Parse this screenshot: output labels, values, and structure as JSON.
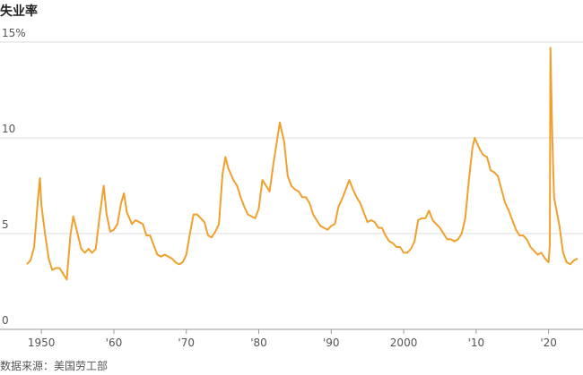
{
  "chart_data": {
    "type": "line",
    "title": "失业率",
    "source": "数据来源：美国劳工部",
    "x": [
      1948.0,
      1948.5,
      1949.0,
      1949.5,
      1949.8,
      1950.0,
      1950.5,
      1951.0,
      1951.5,
      1952.0,
      1952.5,
      1953.0,
      1953.5,
      1954.0,
      1954.4,
      1954.8,
      1955.5,
      1956.0,
      1956.5,
      1957.0,
      1957.5,
      1958.0,
      1958.6,
      1959.0,
      1959.5,
      1960.0,
      1960.5,
      1961.0,
      1961.4,
      1961.8,
      1962.5,
      1963.0,
      1963.5,
      1964.0,
      1964.5,
      1965.0,
      1965.5,
      1966.0,
      1966.5,
      1967.0,
      1967.5,
      1968.0,
      1968.5,
      1969.0,
      1969.5,
      1970.0,
      1970.5,
      1971.0,
      1971.5,
      1972.0,
      1972.5,
      1973.0,
      1973.5,
      1974.0,
      1974.5,
      1975.0,
      1975.4,
      1975.8,
      1976.5,
      1977.0,
      1977.5,
      1978.0,
      1978.5,
      1979.0,
      1979.5,
      1980.0,
      1980.5,
      1981.0,
      1981.5,
      1982.0,
      1982.5,
      1982.9,
      1983.5,
      1984.0,
      1984.5,
      1985.0,
      1985.5,
      1986.0,
      1986.5,
      1987.0,
      1987.5,
      1988.0,
      1988.5,
      1989.0,
      1989.5,
      1990.0,
      1990.5,
      1991.0,
      1991.5,
      1992.0,
      1992.5,
      1993.0,
      1993.5,
      1994.0,
      1994.5,
      1995.0,
      1995.5,
      1996.0,
      1996.5,
      1997.0,
      1997.5,
      1998.0,
      1998.5,
      1999.0,
      1999.5,
      2000.0,
      2000.5,
      2001.0,
      2001.5,
      2002.0,
      2002.5,
      2003.0,
      2003.5,
      2004.0,
      2004.5,
      2005.0,
      2005.5,
      2006.0,
      2006.5,
      2007.0,
      2007.5,
      2008.0,
      2008.5,
      2009.0,
      2009.5,
      2009.8,
      2010.5,
      2011.0,
      2011.5,
      2012.0,
      2012.5,
      2013.0,
      2013.5,
      2014.0,
      2014.5,
      2015.0,
      2015.5,
      2016.0,
      2016.5,
      2017.0,
      2017.5,
      2018.0,
      2018.5,
      2019.0,
      2019.5,
      2020.0,
      2020.17,
      2020.25,
      2020.5,
      2020.75,
      2021.0,
      2021.5,
      2022.0,
      2022.5,
      2023.0,
      2023.5,
      2024.0
    ],
    "values": [
      3.4,
      3.6,
      4.3,
      6.7,
      7.9,
      6.5,
      5.0,
      3.7,
      3.1,
      3.2,
      3.2,
      2.9,
      2.6,
      4.9,
      5.9,
      5.3,
      4.2,
      4.0,
      4.2,
      4.0,
      4.2,
      5.8,
      7.5,
      6.0,
      5.1,
      5.2,
      5.5,
      6.6,
      7.1,
      6.1,
      5.5,
      5.7,
      5.6,
      5.5,
      4.9,
      4.9,
      4.4,
      3.9,
      3.8,
      3.9,
      3.8,
      3.7,
      3.5,
      3.4,
      3.5,
      3.9,
      5.0,
      6.0,
      6.0,
      5.8,
      5.6,
      4.9,
      4.8,
      5.1,
      5.5,
      8.1,
      9.0,
      8.4,
      7.8,
      7.5,
      6.9,
      6.4,
      6.0,
      5.9,
      5.8,
      6.3,
      7.8,
      7.5,
      7.2,
      8.6,
      9.8,
      10.8,
      9.8,
      8.0,
      7.5,
      7.3,
      7.2,
      6.9,
      6.9,
      6.6,
      6.0,
      5.7,
      5.4,
      5.3,
      5.2,
      5.4,
      5.5,
      6.4,
      6.8,
      7.3,
      7.8,
      7.3,
      6.9,
      6.6,
      6.1,
      5.6,
      5.7,
      5.6,
      5.3,
      5.3,
      4.9,
      4.6,
      4.5,
      4.3,
      4.3,
      4.0,
      4.0,
      4.2,
      4.6,
      5.7,
      5.8,
      5.8,
      6.2,
      5.7,
      5.5,
      5.3,
      5.0,
      4.7,
      4.7,
      4.6,
      4.7,
      5.0,
      5.8,
      7.8,
      9.5,
      10.0,
      9.4,
      9.1,
      9.0,
      8.3,
      8.2,
      8.0,
      7.3,
      6.6,
      6.2,
      5.7,
      5.2,
      4.9,
      4.9,
      4.7,
      4.3,
      4.1,
      3.9,
      4.0,
      3.7,
      3.5,
      4.4,
      14.7,
      10.2,
      6.9,
      6.4,
      5.4,
      4.0,
      3.5,
      3.4,
      3.6,
      3.7
    ],
    "color": "#f0a02c",
    "xlim": [
      1948,
      2024.5
    ],
    "xticks": [
      1950,
      {
        "value": 1960,
        "label": "'60"
      },
      {
        "value": 1970,
        "label": "'70"
      },
      {
        "value": 1980,
        "label": "'80"
      },
      {
        "value": 1990,
        "label": "'90"
      },
      2000,
      {
        "value": 2010,
        "label": "'10"
      },
      {
        "value": 2020,
        "label": "'20"
      }
    ],
    "ylim": [
      0,
      15
    ],
    "yticks": [
      0,
      5,
      10,
      {
        "value": 15,
        "label": "15%"
      }
    ],
    "grid": true
  }
}
